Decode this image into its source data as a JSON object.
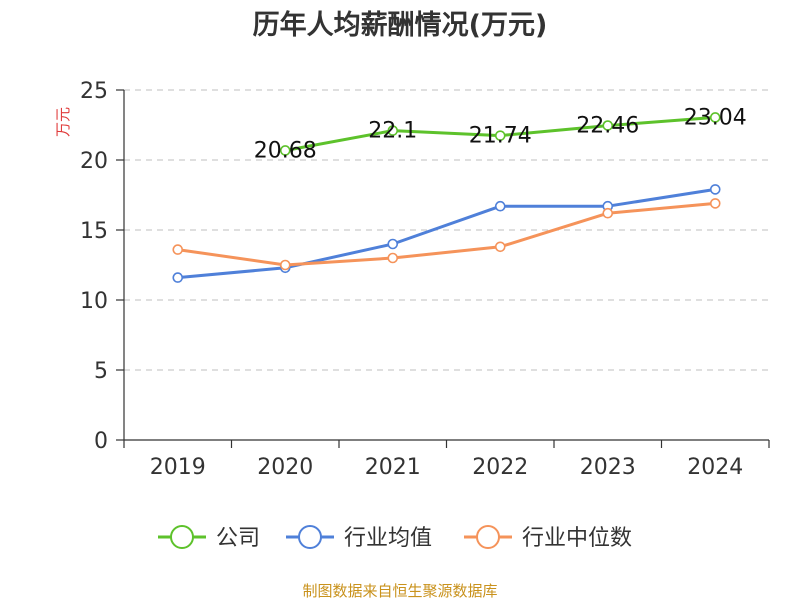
{
  "chart_data": {
    "type": "line",
    "title": "历年人均薪酬情况(万元)",
    "ylabel": "万元",
    "xlabel": "",
    "categories": [
      "2019",
      "2020",
      "2021",
      "2022",
      "2023",
      "2024"
    ],
    "ylim": [
      0,
      25
    ],
    "yticks": [
      0,
      5,
      10,
      15,
      20,
      25
    ],
    "grid": true,
    "legend_position": "bottom",
    "series": [
      {
        "name": "公司",
        "color": "#5dc22b",
        "values": [
          null,
          20.68,
          22.1,
          21.74,
          22.46,
          23.04
        ],
        "labels": [
          null,
          "20.68",
          "22.1",
          "21.74",
          "22.46",
          "23.04"
        ]
      },
      {
        "name": "行业均值",
        "color": "#4f80d9",
        "values": [
          11.6,
          12.3,
          14.0,
          16.7,
          16.7,
          17.9
        ],
        "labels": null
      },
      {
        "name": "行业中位数",
        "color": "#f5935a",
        "values": [
          13.6,
          12.5,
          13.0,
          13.8,
          16.2,
          16.9
        ],
        "labels": null
      }
    ]
  },
  "source_text": "制图数据来自恒生聚源数据库",
  "colors": {
    "axis_label_accent": "#e03c3c",
    "source_text": "#c9921c",
    "grid": "#cccccc",
    "axis": "#333333"
  }
}
